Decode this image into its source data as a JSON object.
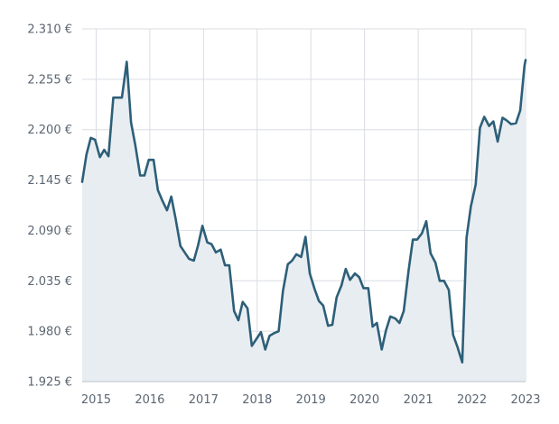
{
  "chart_data": {
    "type": "area",
    "title": "",
    "xlabel": "",
    "ylabel": "",
    "currency_suffix": " €",
    "grid": true,
    "legend": "none",
    "line_color": "#2d5f78",
    "fill_color": "#e8edf2",
    "xlim": [
      2014.74,
      2023.0
    ],
    "ylim": [
      1925,
      2310
    ],
    "y_ticks": [
      {
        "value": 1925,
        "label": "1.925 €"
      },
      {
        "value": 1980,
        "label": "1.980 €"
      },
      {
        "value": 2035,
        "label": "2.035 €"
      },
      {
        "value": 2090,
        "label": "2.090 €"
      },
      {
        "value": 2145,
        "label": "2.145 €"
      },
      {
        "value": 2200,
        "label": "2.200 €"
      },
      {
        "value": 2255,
        "label": "2.255 €"
      },
      {
        "value": 2310,
        "label": "2.310 €"
      }
    ],
    "x_ticks": [
      {
        "value": 2015,
        "label": "2015"
      },
      {
        "value": 2016,
        "label": "2016"
      },
      {
        "value": 2017,
        "label": "2017"
      },
      {
        "value": 2018,
        "label": "2018"
      },
      {
        "value": 2019,
        "label": "2019"
      },
      {
        "value": 2020,
        "label": "2020"
      },
      {
        "value": 2021,
        "label": "2021"
      },
      {
        "value": 2022,
        "label": "2022"
      },
      {
        "value": 2023,
        "label": "2023"
      }
    ],
    "series": [
      {
        "x": [
          2014.74,
          2014.82,
          2014.9,
          2014.98,
          2015.07,
          2015.15,
          2015.23,
          2015.32,
          2015.4,
          2015.48,
          2015.57,
          2015.65,
          2015.73,
          2015.82,
          2015.9,
          2015.98,
          2016.07,
          2016.15,
          2016.23,
          2016.32,
          2016.4,
          2016.48,
          2016.57,
          2016.65,
          2016.73,
          2016.82,
          2016.9,
          2016.98,
          2017.07,
          2017.15,
          2017.23,
          2017.32,
          2017.4,
          2017.48,
          2017.57,
          2017.65,
          2017.73,
          2017.82,
          2017.9,
          2017.98,
          2018.07,
          2018.15,
          2018.23,
          2018.32,
          2018.4,
          2018.48,
          2018.57,
          2018.65,
          2018.73,
          2018.82,
          2018.9,
          2018.98,
          2019.07,
          2019.15,
          2019.23,
          2019.32,
          2019.4,
          2019.48,
          2019.57,
          2019.65,
          2019.73,
          2019.82,
          2019.9,
          2019.98,
          2020.07,
          2020.15,
          2020.23,
          2020.32,
          2020.4,
          2020.48,
          2020.57,
          2020.65,
          2020.73,
          2020.82,
          2020.9,
          2020.98,
          2021.07,
          2021.15,
          2021.23,
          2021.32,
          2021.4,
          2021.48,
          2021.57,
          2021.65,
          2021.73,
          2021.82,
          2021.9,
          2021.98,
          2022.07,
          2022.15,
          2022.23,
          2022.32,
          2022.4,
          2022.48,
          2022.57,
          2022.65,
          2022.73,
          2022.82,
          2022.9,
          2022.98,
          2023.0
        ],
        "values": [
          2143,
          2173,
          2191,
          2189,
          2170,
          2178,
          2171,
          2235,
          2235,
          2235,
          2274,
          2208,
          2183,
          2150,
          2150,
          2167,
          2167,
          2134,
          2123,
          2112,
          2127,
          2103,
          2073,
          2066,
          2059,
          2057,
          2074,
          2095,
          2077,
          2075,
          2066,
          2069,
          2052,
          2052,
          2002,
          1992,
          2012,
          2005,
          1964,
          1971,
          1979,
          1960,
          1975,
          1978,
          1980,
          2024,
          2053,
          2057,
          2064,
          2061,
          2083,
          2043,
          2026,
          2013,
          2008,
          1986,
          1987,
          2017,
          2030,
          2048,
          2036,
          2043,
          2039,
          2027,
          2027,
          1985,
          1989,
          1960,
          1981,
          1996,
          1994,
          1989,
          2002,
          2046,
          2080,
          2080,
          2087,
          2100,
          2065,
          2055,
          2035,
          2035,
          2025,
          1976,
          1963,
          1946,
          2082,
          2116,
          2140,
          2202,
          2214,
          2204,
          2209,
          2187,
          2213,
          2210,
          2206,
          2207,
          2221,
          2270,
          2276
        ]
      }
    ]
  }
}
